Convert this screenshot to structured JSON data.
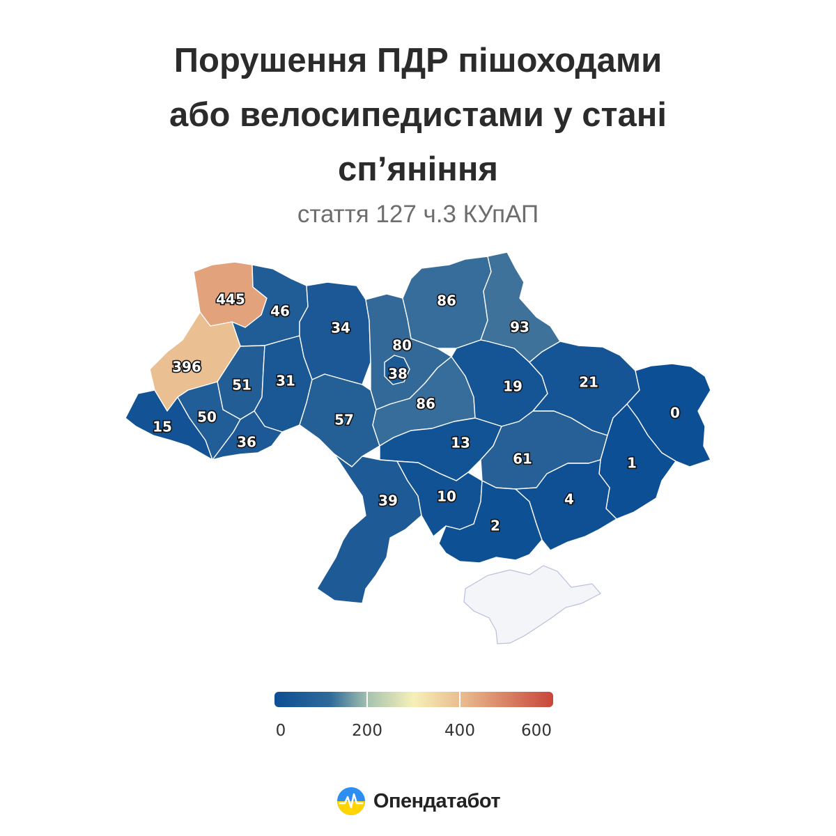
{
  "title": {
    "line1": "Порушення ПДР пішоходами",
    "line2": "або велосипедистами у стані",
    "line3": "сп’яніння"
  },
  "subtitle": "стаття 127 ч.3 КУпАП",
  "chart_data": {
    "type": "choropleth",
    "legend": {
      "min": 0,
      "max": 600,
      "ticks": [
        "0",
        "200",
        "400",
        "600"
      ],
      "colors": [
        "#0d4f94",
        "#2a6397",
        "#a9c4b0",
        "#f7f0b8",
        "#e8b98c",
        "#c8463a"
      ]
    },
    "regions": [
      {
        "name": "Волинська",
        "value": 445
      },
      {
        "name": "Рівненська",
        "value": 46
      },
      {
        "name": "Житомирська",
        "value": 34
      },
      {
        "name": "Київська",
        "value": 80
      },
      {
        "name": "Чернігівська",
        "value": 86
      },
      {
        "name": "Сумська",
        "value": 93
      },
      {
        "name": "Львівська",
        "value": 396
      },
      {
        "name": "Тернопільська",
        "value": 51
      },
      {
        "name": "Хмельницька",
        "value": 31
      },
      {
        "name": "Вінницька",
        "value": 57
      },
      {
        "name": "Київ",
        "value": 38
      },
      {
        "name": "Черкаська",
        "value": 86
      },
      {
        "name": "Полтавська",
        "value": 19
      },
      {
        "name": "Харківська",
        "value": 21
      },
      {
        "name": "Луганська",
        "value": 0
      },
      {
        "name": "Закарпатська",
        "value": 15
      },
      {
        "name": "Івано-Франківська",
        "value": 50
      },
      {
        "name": "Чернівецька",
        "value": 36
      },
      {
        "name": "Кіровоградська",
        "value": 13
      },
      {
        "name": "Дніпропетровська",
        "value": 61
      },
      {
        "name": "Донецька",
        "value": 1
      },
      {
        "name": "Одеська",
        "value": 39
      },
      {
        "name": "Миколаївська",
        "value": 10
      },
      {
        "name": "Херсонська",
        "value": 2
      },
      {
        "name": "Запорізька",
        "value": 4
      },
      {
        "name": "Крим",
        "value": null
      }
    ],
    "no_data_color": "#f4f5f8"
  },
  "brand": {
    "name": "Опендатабот",
    "logo": "opendatabot-logo-icon"
  }
}
